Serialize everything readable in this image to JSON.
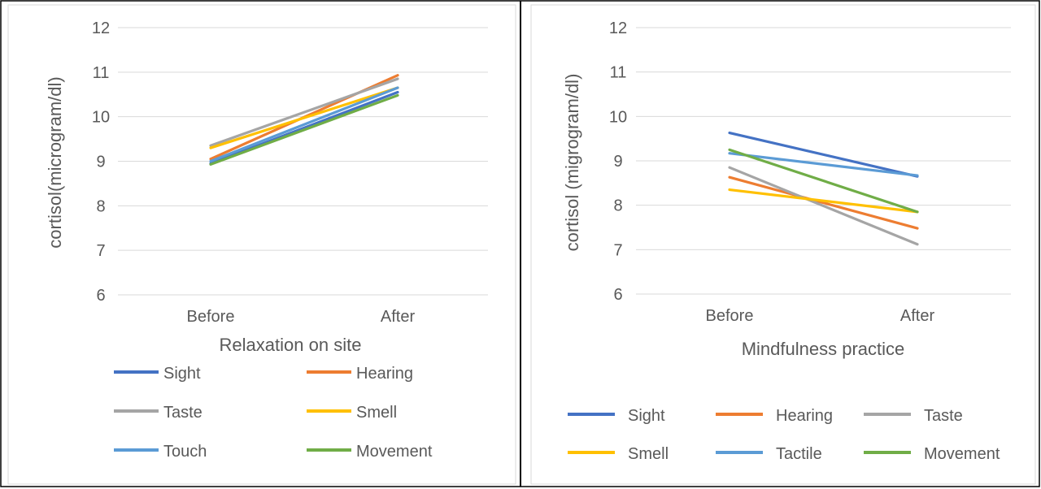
{
  "colors": {
    "Sight": "#4472C4",
    "Hearing": "#ED7D31",
    "Taste": "#A5A5A5",
    "Smell": "#FFC000",
    "Touch": "#5B9BD5",
    "Tactile": "#5B9BD5",
    "Movement": "#70AD47",
    "grid": "#d9d9d9",
    "axis_text": "#595959",
    "border": "#000000"
  },
  "chart_data": [
    {
      "type": "line",
      "xlabel": "Relaxation on site",
      "ylabel": "cortisol(microgram/dl)",
      "categories": [
        "Before",
        "After"
      ],
      "ylim": [
        6,
        12
      ],
      "yticks": [
        "6",
        "7",
        "8",
        "9",
        "10",
        "11",
        "12"
      ],
      "grid": true,
      "legend_position": "bottom",
      "series": [
        {
          "name": "Sight",
          "values": [
            8.95,
            10.55
          ]
        },
        {
          "name": "Hearing",
          "values": [
            9.05,
            10.93
          ]
        },
        {
          "name": "Taste",
          "values": [
            9.35,
            10.85
          ]
        },
        {
          "name": "Smell",
          "values": [
            9.3,
            10.65
          ]
        },
        {
          "name": "Touch",
          "values": [
            9.0,
            10.65
          ]
        },
        {
          "name": "Movement",
          "values": [
            8.93,
            10.48
          ]
        }
      ]
    },
    {
      "type": "line",
      "xlabel": "Mindfulness practice",
      "ylabel": "cortisol (migrogram/dl)",
      "categories": [
        "Before",
        "After"
      ],
      "ylim": [
        6,
        12
      ],
      "yticks": [
        "6",
        "7",
        "8",
        "9",
        "10",
        "11",
        "12"
      ],
      "grid": true,
      "legend_position": "bottom",
      "series": [
        {
          "name": "Sight",
          "values": [
            9.63,
            8.65
          ]
        },
        {
          "name": "Hearing",
          "values": [
            8.63,
            7.48
          ]
        },
        {
          "name": "Taste",
          "values": [
            8.85,
            7.12
          ]
        },
        {
          "name": "Smell",
          "values": [
            8.35,
            7.85
          ]
        },
        {
          "name": "Tactile",
          "values": [
            9.17,
            8.67
          ]
        },
        {
          "name": "Movement",
          "values": [
            9.25,
            7.85
          ]
        }
      ]
    }
  ]
}
